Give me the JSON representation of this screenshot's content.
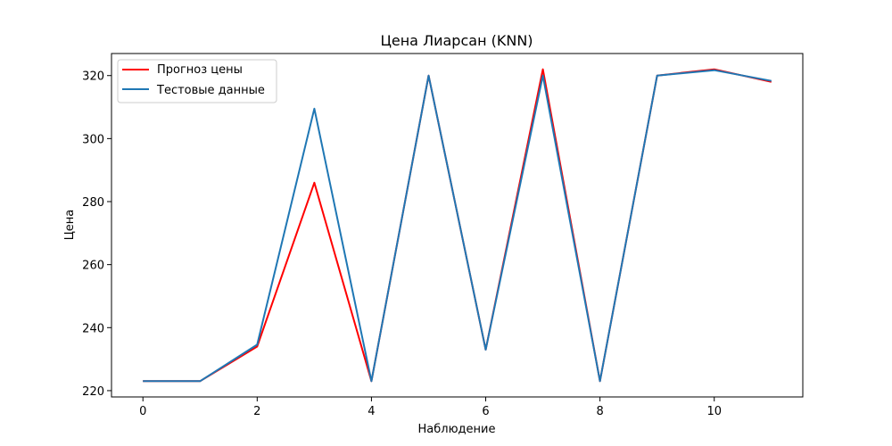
{
  "chart_data": {
    "type": "line",
    "title": "Цена Лиарсан  (KNN)",
    "xlabel": "Наблюдение",
    "ylabel": "Цена",
    "x": [
      0,
      1,
      2,
      3,
      4,
      5,
      6,
      7,
      8,
      9,
      10,
      11
    ],
    "xlim": [
      -0.55,
      11.55
    ],
    "ylim": [
      218,
      327
    ],
    "xticks": [
      0,
      2,
      4,
      6,
      8,
      10
    ],
    "yticks": [
      220,
      240,
      260,
      280,
      300,
      320
    ],
    "legend_position": "top-left",
    "grid": false,
    "series": [
      {
        "name": "Прогноз цены",
        "color": "#ff0000",
        "values": [
          223,
          223,
          234,
          286,
          223,
          320,
          233,
          322,
          223,
          320,
          322,
          318
        ]
      },
      {
        "name": "Тестовые данные",
        "color": "#1f77b4",
        "values": [
          223,
          223,
          234.6,
          309.5,
          223,
          320,
          233,
          320,
          223,
          320,
          321.7,
          318.3
        ]
      }
    ]
  }
}
